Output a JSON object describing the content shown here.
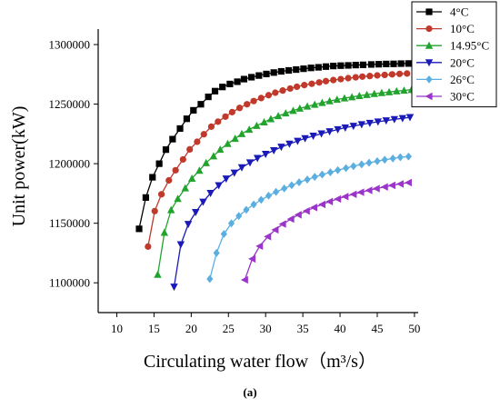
{
  "chart_data": {
    "type": "line",
    "title": "",
    "xlabel": "Circulating water flow（m³/s）",
    "ylabel": "Unit power(kW)",
    "panel_label": "(a)",
    "xlim": [
      7.5,
      50.5
    ],
    "ylim": [
      1075000,
      1313000
    ],
    "x_ticks": [
      10,
      15,
      20,
      25,
      30,
      35,
      40,
      45,
      50
    ],
    "y_ticks": [
      1100000,
      1150000,
      1200000,
      1250000,
      1300000
    ],
    "grid": false,
    "legend_position": "top-right",
    "series": [
      {
        "name": "4°C",
        "color": "#000000",
        "marker": "square",
        "x": [
          13.0,
          13.9,
          14.8,
          15.7,
          16.6,
          17.5,
          18.5,
          19.4,
          20.3,
          21.3,
          22.3,
          23.2,
          24.2,
          25.2,
          26.2,
          27.1,
          28.1,
          29.1,
          30.1,
          31.1,
          32.1,
          33.1,
          34.1,
          35.1,
          36.1,
          37.1,
          38.1,
          39.1,
          40.1,
          41.1,
          42.1,
          43.1,
          44.2,
          45.2,
          46.2,
          47.2,
          48.2,
          49.2
        ],
        "y": [
          1145300,
          1171600,
          1188600,
          1200000,
          1211800,
          1220600,
          1229500,
          1237700,
          1244800,
          1249900,
          1256100,
          1260900,
          1264400,
          1266900,
          1268800,
          1271000,
          1272600,
          1274000,
          1275300,
          1276500,
          1277500,
          1278300,
          1279000,
          1279700,
          1280400,
          1280900,
          1281500,
          1282000,
          1282300,
          1282500,
          1282800,
          1283000,
          1283300,
          1283500,
          1283700,
          1283800,
          1284000,
          1284100
        ]
      },
      {
        "name": "10°C",
        "color": "#c0392b",
        "marker": "circle",
        "x": [
          14.2,
          15.1,
          16.0,
          17.0,
          17.9,
          18.9,
          19.8,
          20.8,
          21.7,
          22.7,
          23.6,
          24.6,
          25.5,
          26.5,
          27.5,
          28.4,
          29.4,
          30.4,
          31.3,
          32.3,
          33.3,
          34.2,
          35.2,
          36.2,
          37.2,
          38.1,
          39.1,
          40.1,
          41.1,
          42.1,
          43.0,
          44.0,
          45.0,
          46.0,
          47.0,
          48.0,
          49.0
        ],
        "y": [
          1130400,
          1160200,
          1174300,
          1186000,
          1194500,
          1203600,
          1212000,
          1218400,
          1224700,
          1231100,
          1235300,
          1239500,
          1243300,
          1246800,
          1249900,
          1252600,
          1255100,
          1257500,
          1259600,
          1261400,
          1263100,
          1264600,
          1266000,
          1267100,
          1268200,
          1269300,
          1270200,
          1271000,
          1271800,
          1272500,
          1273100,
          1273600,
          1274100,
          1274500,
          1275000,
          1275400,
          1275700
        ]
      },
      {
        "name": "14.95°C",
        "color": "#22a32e",
        "marker": "triangle-up",
        "x": [
          15.5,
          16.4,
          17.3,
          18.2,
          19.2,
          20.1,
          21.1,
          22.0,
          23.0,
          23.9,
          24.9,
          25.9,
          26.8,
          27.8,
          28.8,
          29.8,
          30.7,
          31.7,
          32.7,
          33.7,
          34.6,
          35.6,
          36.6,
          37.6,
          38.6,
          39.6,
          40.6,
          41.6,
          42.6,
          43.6,
          44.6,
          45.6,
          46.6,
          47.6,
          48.6,
          49.6
        ],
        "y": [
          1106900,
          1142200,
          1161200,
          1170600,
          1179500,
          1187600,
          1194300,
          1200700,
          1206400,
          1211900,
          1216800,
          1221100,
          1225100,
          1228700,
          1231900,
          1234900,
          1237600,
          1240100,
          1242400,
          1244500,
          1246400,
          1248100,
          1249700,
          1251200,
          1252600,
          1253900,
          1255000,
          1256000,
          1257000,
          1257900,
          1258700,
          1259500,
          1260200,
          1260900,
          1261500,
          1262100
        ]
      },
      {
        "name": "20°C",
        "color": "#1a1ab8",
        "marker": "triangle-down",
        "x": [
          17.7,
          18.6,
          19.6,
          20.6,
          21.6,
          22.6,
          23.7,
          24.7,
          25.8,
          26.8,
          27.9,
          28.9,
          30.0,
          31.1,
          32.1,
          33.2,
          34.3,
          35.3,
          36.4,
          37.5,
          38.6,
          39.7,
          40.7,
          41.8,
          42.9,
          44.0,
          45.1,
          46.2,
          47.3,
          48.4,
          49.4
        ],
        "y": [
          1096600,
          1132100,
          1149200,
          1159200,
          1167900,
          1175200,
          1181700,
          1187300,
          1192300,
          1196800,
          1200900,
          1204600,
          1208000,
          1211100,
          1214000,
          1216600,
          1219000,
          1221200,
          1223300,
          1225200,
          1227000,
          1228700,
          1230200,
          1231600,
          1232900,
          1234100,
          1235200,
          1236200,
          1237200,
          1238100,
          1238900
        ]
      },
      {
        "name": "26°C",
        "color": "#5aaee0",
        "marker": "diamond",
        "x": [
          22.5,
          23.4,
          24.4,
          25.4,
          26.4,
          27.4,
          28.4,
          29.4,
          30.4,
          31.4,
          32.5,
          33.5,
          34.5,
          35.6,
          36.6,
          37.6,
          38.7,
          39.7,
          40.8,
          41.8,
          42.9,
          43.9,
          45.0,
          46.0,
          47.1,
          48.1,
          49.2
        ],
        "y": [
          1103200,
          1125100,
          1141000,
          1149900,
          1156100,
          1161300,
          1165800,
          1169700,
          1173100,
          1176300,
          1179200,
          1181900,
          1184400,
          1186700,
          1188900,
          1190900,
          1192800,
          1194600,
          1196300,
          1197900,
          1199400,
          1200800,
          1202100,
          1203300,
          1204400,
          1205400,
          1206000
        ]
      },
      {
        "name": "30°C",
        "color": "#9b35c9",
        "marker": "triangle-left",
        "x": [
          27.2,
          28.2,
          29.2,
          30.3,
          31.3,
          32.3,
          33.4,
          34.4,
          35.5,
          36.5,
          37.6,
          38.6,
          39.7,
          40.7,
          41.8,
          42.8,
          43.9,
          44.9,
          46.0,
          47.0,
          48.1,
          49.2
        ],
        "y": [
          1102500,
          1120100,
          1130800,
          1138800,
          1144500,
          1149300,
          1153500,
          1157100,
          1160300,
          1163200,
          1165800,
          1168200,
          1170400,
          1172400,
          1174300,
          1176000,
          1177600,
          1179100,
          1180500,
          1181800,
          1183000,
          1184100
        ]
      }
    ]
  }
}
